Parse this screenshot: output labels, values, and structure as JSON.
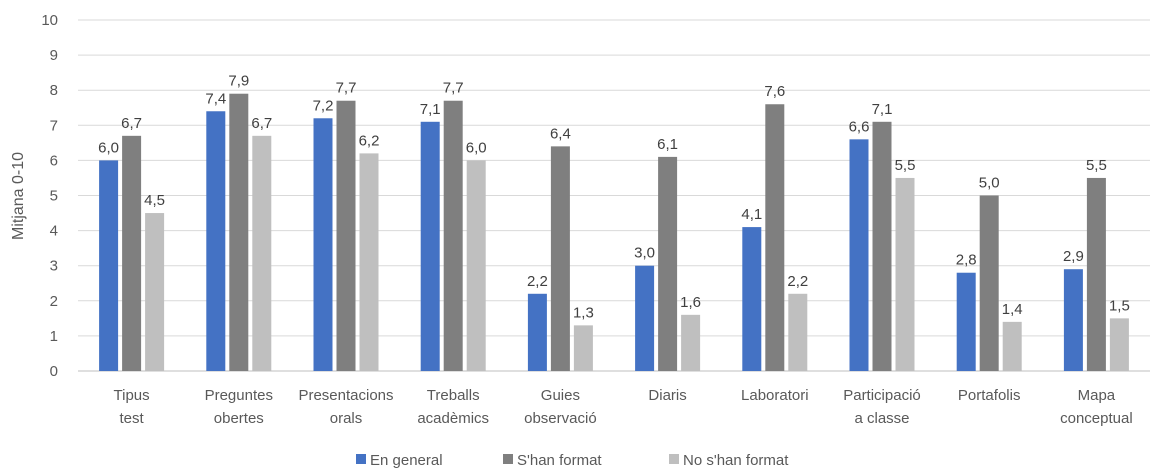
{
  "chart_data": {
    "type": "bar",
    "ylabel": "Mitjana 0-10",
    "ylim": [
      0,
      10
    ],
    "yticks": [
      "0",
      "1",
      "2",
      "3",
      "4",
      "5",
      "6",
      "7",
      "8",
      "9",
      "10"
    ],
    "grid": true,
    "legend_position": "bottom",
    "categories": [
      [
        "Tipus",
        "test"
      ],
      [
        "Preguntes",
        "obertes"
      ],
      [
        "Presentacions",
        "orals"
      ],
      [
        "Treballs",
        "acadèmics"
      ],
      [
        "Guies",
        "observació"
      ],
      [
        "Diaris"
      ],
      [
        "Laboratori"
      ],
      [
        "Participació",
        "a classe"
      ],
      [
        "Portafolis"
      ],
      [
        "Mapa",
        "conceptual"
      ]
    ],
    "series": [
      {
        "name": "En general",
        "color": "#4472C4",
        "values": [
          6.0,
          7.4,
          7.2,
          7.1,
          2.2,
          3.0,
          4.1,
          6.6,
          2.8,
          2.9
        ],
        "labels": [
          "6,0",
          "7,4",
          "7,2",
          "7,1",
          "2,2",
          "3,0",
          "4,1",
          "6,6",
          "2,8",
          "2,9"
        ]
      },
      {
        "name": "S'han format",
        "color": "#7F7F7F",
        "values": [
          6.7,
          7.9,
          7.7,
          7.7,
          6.4,
          6.1,
          7.6,
          7.1,
          5.0,
          5.5
        ],
        "labels": [
          "6,7",
          "7,9",
          "7,7",
          "7,7",
          "6,4",
          "6,1",
          "7,6",
          "7,1",
          "5,0",
          "5,5"
        ]
      },
      {
        "name": "No s'han format",
        "color": "#BFBFBF",
        "values": [
          4.5,
          6.7,
          6.2,
          6.0,
          1.3,
          1.6,
          2.2,
          5.5,
          1.4,
          1.5
        ],
        "labels": [
          "4,5",
          "6,7",
          "6,2",
          "6,0",
          "1,3",
          "1,6",
          "2,2",
          "5,5",
          "1,4",
          "1,5"
        ]
      }
    ]
  }
}
